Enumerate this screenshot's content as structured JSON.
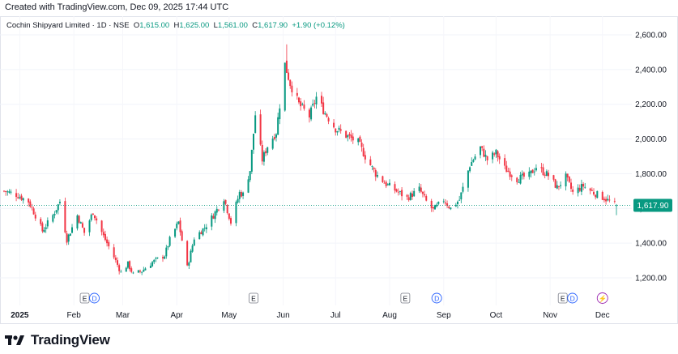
{
  "header": {
    "credit": "Created with TradingView.com, Dec 09, 2025 17:44 UTC",
    "symbol": "Cochin Shipyard Limited · 1D · NSE",
    "o_label": "O",
    "o_value": "1,615.00",
    "h_label": "H",
    "h_value": "1,625.00",
    "l_label": "L",
    "l_value": "1,561.00",
    "c_label": "C",
    "c_value": "1,617.90",
    "change": "+1.90 (+0.12%)"
  },
  "footer": {
    "logo_text": "TradingView"
  },
  "chart_data": {
    "type": "candlestick",
    "y_ticks": [
      "2,600.00",
      "2,400.00",
      "2,200.00",
      "2,000.00",
      "1,800.00",
      "1,600.00",
      "1,400.00",
      "1,200.00"
    ],
    "y_tick_values": [
      2600,
      2400,
      2200,
      2000,
      1800,
      1600,
      1400,
      1200
    ],
    "y_range": [
      1080,
      2720
    ],
    "x_ticks": [
      {
        "label": "2025",
        "date": "2025-01-01",
        "bold": true
      },
      {
        "label": "Feb",
        "date": "2025-02-01"
      },
      {
        "label": "Mar",
        "date": "2025-03-01"
      },
      {
        "label": "Apr",
        "date": "2025-04-01"
      },
      {
        "label": "May",
        "date": "2025-05-01"
      },
      {
        "label": "Jun",
        "date": "2025-06-01"
      },
      {
        "label": "Jul",
        "date": "2025-07-01"
      },
      {
        "label": "Aug",
        "date": "2025-08-01"
      },
      {
        "label": "Sep",
        "date": "2025-09-01"
      },
      {
        "label": "Oct",
        "date": "2025-10-01"
      },
      {
        "label": "Nov",
        "date": "2025-11-01"
      },
      {
        "label": "Dec",
        "date": "2025-12-01"
      }
    ],
    "last_price": 1617.9,
    "last_price_label": "1,617.90",
    "colors": {
      "up": "#089981",
      "down": "#f23645",
      "last": "#089981"
    },
    "events": [
      {
        "date": "2025-02-10",
        "labels": [
          "E",
          "D"
        ]
      },
      {
        "date": "2025-05-15",
        "labels": [
          "E"
        ]
      },
      {
        "date": "2025-08-10",
        "labels": [
          "E"
        ]
      },
      {
        "date": "2025-08-28",
        "labels": [
          "D"
        ]
      },
      {
        "date": "2025-11-11",
        "labels": [
          "E",
          "D"
        ]
      },
      {
        "date": "2025-12-01",
        "labels": [
          "⚡"
        ]
      }
    ],
    "close_path": [
      [
        "2024-12-23",
        1700
      ],
      [
        "2024-12-30",
        1680
      ],
      [
        "2025-01-06",
        1640
      ],
      [
        "2025-01-10",
        1560
      ],
      [
        "2025-01-14",
        1470
      ],
      [
        "2025-01-20",
        1560
      ],
      [
        "2025-01-24",
        1640
      ],
      [
        "2025-01-28",
        1420
      ],
      [
        "2025-02-03",
        1560
      ],
      [
        "2025-02-07",
        1460
      ],
      [
        "2025-02-12",
        1580
      ],
      [
        "2025-02-18",
        1440
      ],
      [
        "2025-02-24",
        1320
      ],
      [
        "2025-02-28",
        1230
      ],
      [
        "2025-03-04",
        1280
      ],
      [
        "2025-03-07",
        1220
      ],
      [
        "2025-03-12",
        1240
      ],
      [
        "2025-03-18",
        1290
      ],
      [
        "2025-03-25",
        1330
      ],
      [
        "2025-03-28",
        1420
      ],
      [
        "2025-04-02",
        1520
      ],
      [
        "2025-04-07",
        1260
      ],
      [
        "2025-04-11",
        1430
      ],
      [
        "2025-04-17",
        1490
      ],
      [
        "2025-04-22",
        1560
      ],
      [
        "2025-04-28",
        1660
      ],
      [
        "2025-05-02",
        1520
      ],
      [
        "2025-05-07",
        1690
      ],
      [
        "2025-05-09",
        1680
      ],
      [
        "2025-05-13",
        1820
      ],
      [
        "2025-05-16",
        2140
      ],
      [
        "2025-05-20",
        1880
      ],
      [
        "2025-05-23",
        1960
      ],
      [
        "2025-05-28",
        2040
      ],
      [
        "2025-06-02",
        2430
      ],
      [
        "2025-06-05",
        2320
      ],
      [
        "2025-06-10",
        2200
      ],
      [
        "2025-06-16",
        2130
      ],
      [
        "2025-06-20",
        2240
      ],
      [
        "2025-06-25",
        2150
      ],
      [
        "2025-07-01",
        2060
      ],
      [
        "2025-07-07",
        2020
      ],
      [
        "2025-07-14",
        1980
      ],
      [
        "2025-07-18",
        1900
      ],
      [
        "2025-07-24",
        1800
      ],
      [
        "2025-07-30",
        1740
      ],
      [
        "2025-08-05",
        1700
      ],
      [
        "2025-08-11",
        1660
      ],
      [
        "2025-08-18",
        1710
      ],
      [
        "2025-08-22",
        1640
      ],
      [
        "2025-08-26",
        1590
      ],
      [
        "2025-09-01",
        1650
      ],
      [
        "2025-09-05",
        1600
      ],
      [
        "2025-09-10",
        1650
      ],
      [
        "2025-09-16",
        1850
      ],
      [
        "2025-09-22",
        1950
      ],
      [
        "2025-09-26",
        1880
      ],
      [
        "2025-10-01",
        1920
      ],
      [
        "2025-10-06",
        1830
      ],
      [
        "2025-10-13",
        1770
      ],
      [
        "2025-10-20",
        1790
      ],
      [
        "2025-10-24",
        1840
      ],
      [
        "2025-10-31",
        1790
      ],
      [
        "2025-11-05",
        1720
      ],
      [
        "2025-11-10",
        1780
      ],
      [
        "2025-11-14",
        1690
      ],
      [
        "2025-11-20",
        1730
      ],
      [
        "2025-11-26",
        1690
      ],
      [
        "2025-12-02",
        1660
      ],
      [
        "2025-12-05",
        1640
      ],
      [
        "2025-12-09",
        1617.9
      ]
    ]
  }
}
